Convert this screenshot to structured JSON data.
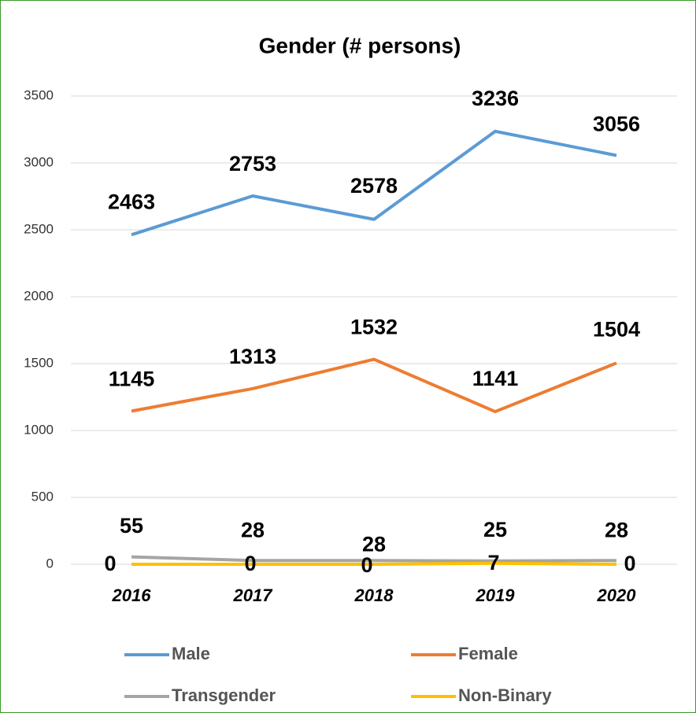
{
  "chart_data": {
    "type": "line",
    "title": "Gender (# persons)",
    "categories": [
      "2016",
      "2017",
      "2018",
      "2019",
      "2020"
    ],
    "series": [
      {
        "name": "Male",
        "color": "#5b9bd5",
        "values": [
          2463,
          2753,
          2578,
          3236,
          3056
        ]
      },
      {
        "name": "Female",
        "color": "#ed7d31",
        "values": [
          1145,
          1313,
          1532,
          1141,
          1504
        ]
      },
      {
        "name": "Transgender",
        "color": "#a5a5a5",
        "values": [
          55,
          28,
          28,
          25,
          28
        ]
      },
      {
        "name": "Non-Binary",
        "color": "#ffc000",
        "values": [
          0,
          0,
          0,
          7,
          0
        ]
      }
    ],
    "ylim": [
      0,
      3500
    ],
    "yticks": [
      0,
      500,
      1000,
      1500,
      2000,
      2500,
      3000,
      3500
    ],
    "grid": true
  }
}
